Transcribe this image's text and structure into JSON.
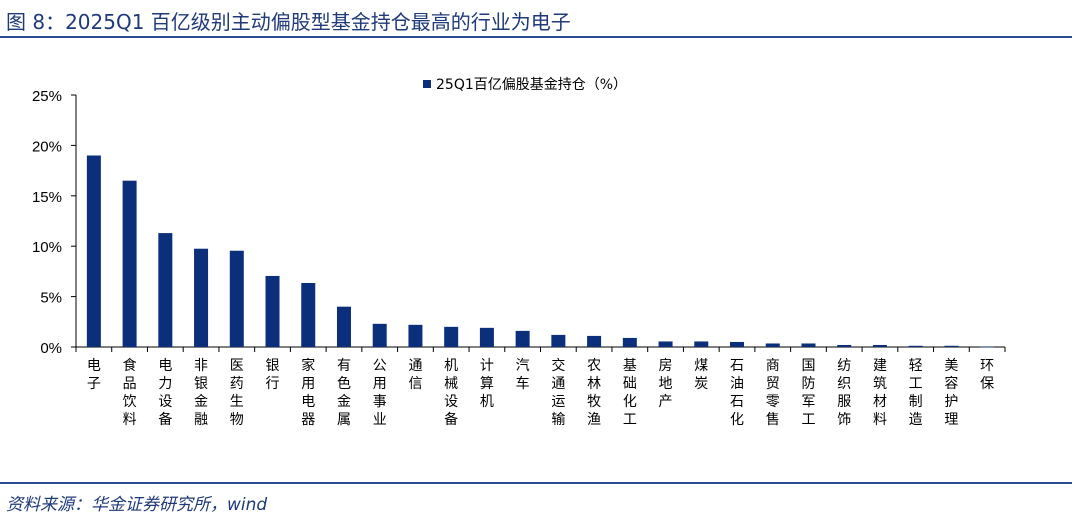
{
  "title": "图 8：2025Q1 百亿级别主动偏股型基金持仓最高的行业为电子",
  "source": "资料来源：华金证券研究所，wind",
  "chart_data": {
    "type": "bar",
    "categories": [
      "电子",
      "食品饮料",
      "电力设备",
      "非银金融",
      "医药生物",
      "银行",
      "家用电器",
      "有色金属",
      "公用事业",
      "通信",
      "机械设备",
      "计算机",
      "汽车",
      "交通运输",
      "农林牧渔",
      "基础化工",
      "房地产",
      "煤炭",
      "石油石化",
      "商贸零售",
      "国防军工",
      "纺织服饰",
      "建筑材料",
      "轻工制造",
      "美容护理",
      "环保"
    ],
    "series": [
      {
        "name": "25Q1百亿偏股基金持仓（%）",
        "values": [
          19.0,
          16.5,
          11.3,
          9.75,
          9.55,
          7.05,
          6.35,
          4.0,
          2.3,
          2.2,
          2.0,
          1.9,
          1.6,
          1.2,
          1.1,
          0.9,
          0.55,
          0.55,
          0.5,
          0.35,
          0.35,
          0.2,
          0.2,
          0.12,
          0.12,
          0.03
        ]
      }
    ],
    "ylim": [
      0,
      25
    ],
    "yticks": [
      "0%",
      "5%",
      "10%",
      "15%",
      "20%",
      "25%"
    ],
    "color": "#0b2f7a",
    "legend": "top-center",
    "grid": false
  }
}
